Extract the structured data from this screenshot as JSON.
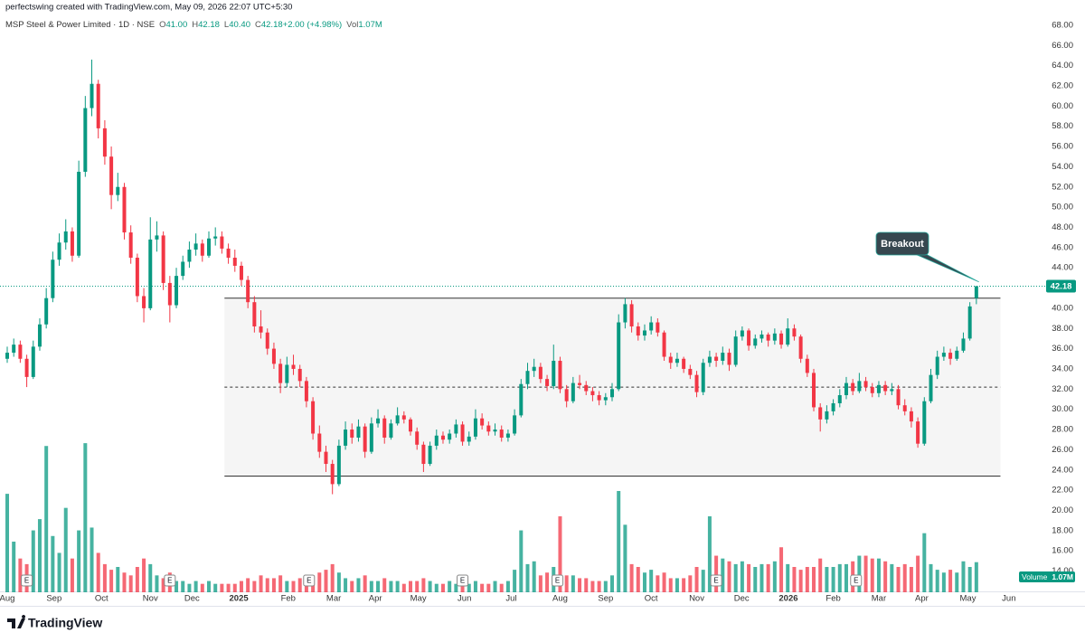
{
  "header": "perfectswing created with TradingView.com, May 09, 2026 22:07 UTC+5:30",
  "footer": "TradingView",
  "chart_data": {
    "type": "candlestick",
    "title": "MSP Steel & Power Limited · 1D · NSE",
    "legend": [
      {
        "key": "O",
        "value": "41.00"
      },
      {
        "key": "H",
        "value": "42.18"
      },
      {
        "key": "L",
        "value": "40.40"
      },
      {
        "key": "C",
        "value": "42.18"
      },
      {
        "key": "",
        "value": "+2.00 (+4.98%)"
      },
      {
        "key": "Vol",
        "value": "1.07M"
      }
    ],
    "up_color": "#089981",
    "down_color": "#f23645",
    "grid": false,
    "ylim": [
      11.9,
      69.6
    ],
    "yticks": [
      {
        "value": 14,
        "label": "14.00"
      },
      {
        "value": 16,
        "label": "16.00"
      },
      {
        "value": 18,
        "label": "18.00"
      },
      {
        "value": 20,
        "label": "20.00"
      },
      {
        "value": 22,
        "label": "22.00"
      },
      {
        "value": 24,
        "label": "24.00"
      },
      {
        "value": 26,
        "label": "26.00"
      },
      {
        "value": 28,
        "label": "28.00"
      },
      {
        "value": 30,
        "label": "30.00"
      },
      {
        "value": 32,
        "label": "32.00"
      },
      {
        "value": 34,
        "label": "34.00"
      },
      {
        "value": 36,
        "label": "36.00"
      },
      {
        "value": 38,
        "label": "38.00"
      },
      {
        "value": 40,
        "label": "40.00"
      },
      {
        "value": 42,
        "label": "42.00"
      },
      {
        "value": 44,
        "label": "44.00"
      },
      {
        "value": 46,
        "label": "46.00"
      },
      {
        "value": 48,
        "label": "48.00"
      },
      {
        "value": 50,
        "label": "50.00"
      },
      {
        "value": 52,
        "label": "52.00"
      },
      {
        "value": 54,
        "label": "54.00"
      },
      {
        "value": 56,
        "label": "56.00"
      },
      {
        "value": 58,
        "label": "58.00"
      },
      {
        "value": 60,
        "label": "60.00"
      },
      {
        "value": 62,
        "label": "62.00"
      },
      {
        "value": 64,
        "label": "64.00"
      },
      {
        "value": 66,
        "label": "66.00"
      },
      {
        "value": 68,
        "label": "68.00"
      }
    ],
    "xlim": [
      0,
      157.5
    ],
    "xticks": [
      {
        "value": 0,
        "label": "Aug"
      },
      {
        "value": 7.2,
        "label": "Sep"
      },
      {
        "value": 14.5,
        "label": "Oct"
      },
      {
        "value": 22,
        "label": "Nov"
      },
      {
        "value": 28.4,
        "label": "Dec"
      },
      {
        "value": 35.6,
        "label": "2025"
      },
      {
        "value": 43.2,
        "label": "Feb"
      },
      {
        "value": 50.2,
        "label": "Mar"
      },
      {
        "value": 56.6,
        "label": "Apr"
      },
      {
        "value": 63.2,
        "label": "May"
      },
      {
        "value": 70.3,
        "label": "Jun"
      },
      {
        "value": 77.5,
        "label": "Jul"
      },
      {
        "value": 85,
        "label": "Aug"
      },
      {
        "value": 92,
        "label": "Sep"
      },
      {
        "value": 99,
        "label": "Oct"
      },
      {
        "value": 106,
        "label": "Nov"
      },
      {
        "value": 112.9,
        "label": "Dec"
      },
      {
        "value": 120.1,
        "label": "2026"
      },
      {
        "value": 127,
        "label": "Feb"
      },
      {
        "value": 134,
        "label": "Mar"
      },
      {
        "value": 140.6,
        "label": "Apr"
      },
      {
        "value": 147.7,
        "label": "May"
      },
      {
        "value": 154,
        "label": "Jun"
      }
    ],
    "ohlc": [
      [
        35.0,
        36.2,
        34.6,
        35.6
      ],
      [
        35.6,
        37.0,
        35.2,
        36.4
      ],
      [
        36.4,
        36.8,
        34.6,
        35.0
      ],
      [
        35.0,
        35.4,
        32.2,
        33.2
      ],
      [
        33.2,
        36.8,
        33.0,
        36.2
      ],
      [
        36.2,
        39.0,
        35.8,
        38.4
      ],
      [
        38.4,
        42.0,
        38.0,
        41.0
      ],
      [
        41.0,
        45.6,
        40.6,
        44.8
      ],
      [
        44.8,
        47.4,
        44.2,
        46.5
      ],
      [
        46.5,
        48.8,
        45.8,
        47.6
      ],
      [
        47.6,
        48.0,
        44.6,
        45.2
      ],
      [
        45.2,
        54.6,
        45.0,
        53.5
      ],
      [
        53.5,
        61.0,
        53.0,
        59.8
      ],
      [
        59.8,
        64.6,
        59.0,
        62.2
      ],
      [
        62.2,
        62.6,
        56.8,
        57.8
      ],
      [
        57.8,
        58.6,
        54.2,
        55.0
      ],
      [
        55.0,
        56.0,
        49.8,
        51.2
      ],
      [
        51.2,
        53.4,
        50.6,
        52.0
      ],
      [
        52.0,
        52.4,
        46.8,
        47.5
      ],
      [
        47.5,
        48.2,
        44.4,
        45.0
      ],
      [
        45.0,
        45.4,
        40.6,
        41.2
      ],
      [
        41.2,
        42.0,
        38.6,
        40.0
      ],
      [
        40.0,
        49.0,
        39.8,
        46.8
      ],
      [
        46.8,
        48.6,
        45.6,
        47.2
      ],
      [
        47.2,
        47.6,
        41.8,
        42.5
      ],
      [
        42.5,
        43.2,
        38.6,
        40.3
      ],
      [
        40.3,
        44.0,
        40.0,
        43.2
      ],
      [
        43.2,
        45.2,
        42.8,
        44.6
      ],
      [
        44.6,
        46.6,
        44.0,
        45.8
      ],
      [
        45.8,
        47.4,
        45.2,
        46.4
      ],
      [
        46.4,
        46.8,
        44.6,
        45.2
      ],
      [
        45.2,
        47.6,
        45.0,
        46.9
      ],
      [
        46.9,
        48.0,
        46.2,
        47.1
      ],
      [
        47.1,
        47.6,
        45.4,
        45.9
      ],
      [
        45.9,
        46.4,
        44.4,
        45.0
      ],
      [
        45.0,
        45.8,
        43.6,
        44.2
      ],
      [
        44.2,
        44.6,
        42.2,
        42.8
      ],
      [
        42.8,
        43.2,
        40.0,
        40.6
      ],
      [
        40.6,
        41.2,
        37.6,
        38.2
      ],
      [
        38.2,
        39.8,
        37.0,
        37.6
      ],
      [
        37.6,
        38.0,
        35.4,
        36.0
      ],
      [
        36.0,
        36.6,
        34.0,
        34.5
      ],
      [
        34.5,
        35.0,
        31.6,
        32.6
      ],
      [
        32.6,
        35.2,
        32.2,
        34.4
      ],
      [
        34.4,
        35.4,
        33.4,
        34.0
      ],
      [
        34.0,
        34.4,
        32.2,
        32.8
      ],
      [
        32.8,
        33.2,
        30.2,
        30.8
      ],
      [
        30.8,
        31.2,
        27.0,
        27.6
      ],
      [
        27.6,
        28.4,
        25.2,
        25.8
      ],
      [
        25.8,
        26.4,
        23.8,
        24.6
      ],
      [
        24.6,
        25.0,
        21.6,
        22.6
      ],
      [
        22.6,
        27.0,
        22.4,
        26.4
      ],
      [
        26.4,
        28.8,
        26.0,
        28.0
      ],
      [
        28.0,
        28.6,
        26.6,
        27.2
      ],
      [
        27.2,
        29.0,
        26.8,
        28.3
      ],
      [
        28.3,
        28.6,
        25.2,
        25.8
      ],
      [
        25.8,
        29.2,
        25.6,
        28.6
      ],
      [
        28.6,
        30.0,
        28.2,
        29.1
      ],
      [
        29.1,
        29.4,
        26.6,
        27.2
      ],
      [
        27.2,
        29.0,
        27.0,
        28.6
      ],
      [
        28.6,
        30.2,
        28.4,
        29.4
      ],
      [
        29.4,
        29.8,
        28.6,
        29.0
      ],
      [
        29.0,
        29.2,
        27.4,
        27.8
      ],
      [
        27.8,
        28.2,
        26.0,
        26.5
      ],
      [
        26.5,
        26.8,
        23.8,
        24.6
      ],
      [
        24.6,
        26.8,
        24.4,
        26.4
      ],
      [
        26.4,
        28.0,
        26.0,
        27.4
      ],
      [
        27.4,
        27.8,
        26.6,
        27.0
      ],
      [
        27.0,
        28.0,
        26.6,
        27.6
      ],
      [
        27.6,
        29.0,
        27.2,
        28.5
      ],
      [
        28.5,
        28.8,
        26.4,
        26.8
      ],
      [
        26.8,
        27.8,
        26.4,
        27.3
      ],
      [
        27.3,
        30.0,
        27.0,
        29.1
      ],
      [
        29.1,
        29.6,
        28.0,
        28.4
      ],
      [
        28.4,
        28.8,
        27.4,
        27.8
      ],
      [
        27.8,
        28.6,
        27.4,
        28.0
      ],
      [
        28.0,
        28.4,
        26.8,
        27.2
      ],
      [
        27.2,
        28.0,
        26.8,
        27.6
      ],
      [
        27.6,
        30.0,
        27.4,
        29.4
      ],
      [
        29.4,
        33.0,
        29.2,
        32.5
      ],
      [
        32.5,
        34.6,
        32.0,
        33.8
      ],
      [
        33.8,
        35.0,
        33.2,
        34.2
      ],
      [
        34.2,
        34.6,
        32.6,
        33.0
      ],
      [
        33.0,
        33.4,
        31.8,
        32.3
      ],
      [
        32.3,
        36.4,
        32.0,
        34.8
      ],
      [
        34.8,
        35.2,
        31.6,
        32.0
      ],
      [
        32.0,
        32.4,
        30.2,
        30.8
      ],
      [
        30.8,
        33.2,
        30.6,
        32.6
      ],
      [
        32.6,
        33.4,
        32.0,
        32.4
      ],
      [
        32.4,
        32.8,
        31.4,
        31.8
      ],
      [
        31.8,
        32.2,
        30.8,
        31.4
      ],
      [
        31.4,
        31.8,
        30.4,
        30.9
      ],
      [
        30.9,
        31.6,
        30.4,
        31.2
      ],
      [
        31.2,
        32.6,
        30.8,
        32.0
      ],
      [
        32.0,
        39.4,
        31.8,
        38.6
      ],
      [
        38.6,
        41.0,
        38.0,
        40.4
      ],
      [
        40.4,
        40.8,
        37.6,
        38.2
      ],
      [
        38.2,
        38.6,
        36.8,
        37.3
      ],
      [
        37.3,
        38.4,
        36.8,
        37.8
      ],
      [
        37.8,
        39.2,
        37.4,
        38.6
      ],
      [
        38.6,
        39.0,
        37.2,
        37.6
      ],
      [
        37.6,
        37.8,
        34.8,
        35.2
      ],
      [
        35.2,
        35.6,
        34.0,
        34.6
      ],
      [
        34.6,
        35.6,
        34.2,
        35.0
      ],
      [
        35.0,
        35.2,
        33.6,
        34.0
      ],
      [
        34.0,
        34.4,
        33.0,
        33.4
      ],
      [
        33.4,
        33.8,
        31.2,
        31.7
      ],
      [
        31.7,
        35.0,
        31.4,
        34.6
      ],
      [
        34.6,
        35.8,
        34.2,
        35.2
      ],
      [
        35.2,
        35.6,
        34.2,
        34.8
      ],
      [
        34.8,
        36.2,
        34.4,
        35.6
      ],
      [
        35.6,
        36.0,
        33.8,
        34.4
      ],
      [
        34.4,
        37.8,
        34.2,
        37.2
      ],
      [
        37.2,
        38.2,
        36.8,
        37.8
      ],
      [
        37.8,
        38.0,
        35.8,
        36.3
      ],
      [
        36.3,
        37.4,
        36.0,
        37.0
      ],
      [
        37.0,
        37.8,
        36.6,
        37.4
      ],
      [
        37.4,
        37.6,
        36.2,
        36.8
      ],
      [
        36.8,
        38.0,
        36.4,
        37.5
      ],
      [
        37.5,
        37.8,
        36.0,
        36.4
      ],
      [
        36.4,
        39.0,
        36.2,
        38.0
      ],
      [
        38.0,
        38.4,
        36.8,
        37.2
      ],
      [
        37.2,
        37.4,
        34.6,
        35.0
      ],
      [
        35.0,
        35.4,
        33.2,
        33.6
      ],
      [
        33.6,
        34.0,
        29.8,
        30.2
      ],
      [
        30.2,
        30.6,
        27.8,
        29.0
      ],
      [
        29.0,
        30.4,
        28.6,
        29.8
      ],
      [
        29.8,
        31.0,
        29.4,
        30.6
      ],
      [
        30.6,
        32.0,
        30.2,
        31.4
      ],
      [
        31.4,
        33.2,
        31.0,
        32.6
      ],
      [
        32.6,
        33.0,
        31.4,
        31.8
      ],
      [
        31.8,
        33.6,
        31.6,
        32.8
      ],
      [
        32.8,
        33.2,
        31.8,
        32.2
      ],
      [
        32.2,
        32.6,
        31.2,
        31.6
      ],
      [
        31.6,
        32.8,
        31.2,
        32.4
      ],
      [
        32.4,
        32.8,
        31.4,
        31.8
      ],
      [
        31.8,
        32.6,
        31.4,
        32.0
      ],
      [
        32.0,
        32.4,
        30.0,
        30.4
      ],
      [
        30.4,
        31.0,
        29.4,
        29.8
      ],
      [
        29.8,
        30.2,
        28.2,
        28.8
      ],
      [
        28.8,
        29.2,
        26.2,
        26.6
      ],
      [
        26.6,
        31.2,
        26.4,
        30.8
      ],
      [
        30.8,
        34.0,
        30.6,
        33.4
      ],
      [
        33.4,
        35.8,
        33.0,
        35.2
      ],
      [
        35.2,
        36.2,
        34.8,
        35.6
      ],
      [
        35.6,
        36.0,
        34.4,
        35.0
      ],
      [
        35.0,
        36.2,
        34.8,
        35.8
      ],
      [
        35.8,
        37.6,
        35.6,
        37.0
      ],
      [
        37.0,
        40.6,
        36.8,
        40.18
      ],
      [
        41.0,
        42.18,
        40.4,
        42.18
      ]
    ],
    "volume": [
      3.5,
      1.8,
      1.2,
      1.0,
      2.2,
      2.6,
      5.2,
      2.0,
      1.4,
      3.0,
      1.2,
      2.2,
      5.3,
      2.3,
      1.4,
      1.0,
      0.8,
      0.9,
      0.7,
      0.6,
      0.9,
      1.2,
      1.0,
      0.6,
      0.5,
      0.7,
      0.4,
      0.4,
      0.3,
      0.4,
      0.3,
      0.4,
      0.3,
      0.3,
      0.3,
      0.3,
      0.4,
      0.5,
      0.4,
      0.6,
      0.5,
      0.5,
      0.6,
      0.4,
      0.4,
      0.5,
      0.5,
      0.6,
      0.7,
      0.8,
      1.0,
      0.7,
      0.5,
      0.4,
      0.5,
      0.6,
      0.4,
      0.4,
      0.5,
      0.4,
      0.4,
      0.3,
      0.4,
      0.4,
      0.5,
      0.4,
      0.3,
      0.3,
      0.4,
      0.3,
      0.3,
      0.3,
      0.4,
      0.3,
      0.3,
      0.4,
      0.3,
      0.4,
      0.8,
      2.2,
      1.0,
      1.1,
      0.6,
      0.7,
      0.9,
      2.7,
      0.6,
      0.6,
      0.5,
      0.5,
      0.4,
      0.4,
      0.4,
      0.6,
      3.6,
      2.4,
      1.0,
      0.9,
      0.7,
      0.8,
      0.6,
      0.7,
      0.5,
      0.5,
      0.5,
      0.6,
      0.9,
      0.8,
      2.7,
      1.3,
      1.2,
      1.1,
      1.0,
      1.1,
      1.0,
      0.9,
      1.0,
      1.0,
      1.1,
      1.6,
      1.0,
      0.9,
      0.8,
      0.9,
      0.9,
      1.2,
      0.9,
      0.9,
      1.0,
      1.0,
      1.1,
      1.3,
      1.3,
      1.2,
      1.2,
      1.1,
      1.0,
      0.9,
      1.0,
      0.9,
      1.3,
      2.1,
      1.0,
      0.8,
      0.7,
      0.8,
      0.7,
      1.1,
      0.9,
      1.07
    ],
    "vlim": [
      0,
      9
    ],
    "volume_title": "Volume",
    "volume_label": "1.07M",
    "last_price": 42.18,
    "range_box": {
      "x_start": 33.4,
      "x_end": 152.7,
      "top": 41.0,
      "bottom": 23.4,
      "mid": 32.2
    },
    "annotation": {
      "label": "Breakout",
      "x": 149.4,
      "y": 42.6
    },
    "earnings": [
      {
        "x": 3,
        "label": "E"
      },
      {
        "x": 25,
        "label": "E"
      },
      {
        "x": 46.4,
        "label": "E"
      },
      {
        "x": 70,
        "label": "E"
      },
      {
        "x": 84.6,
        "label": "E"
      },
      {
        "x": 109,
        "label": "E"
      },
      {
        "x": 130.5,
        "label": "E"
      }
    ]
  }
}
